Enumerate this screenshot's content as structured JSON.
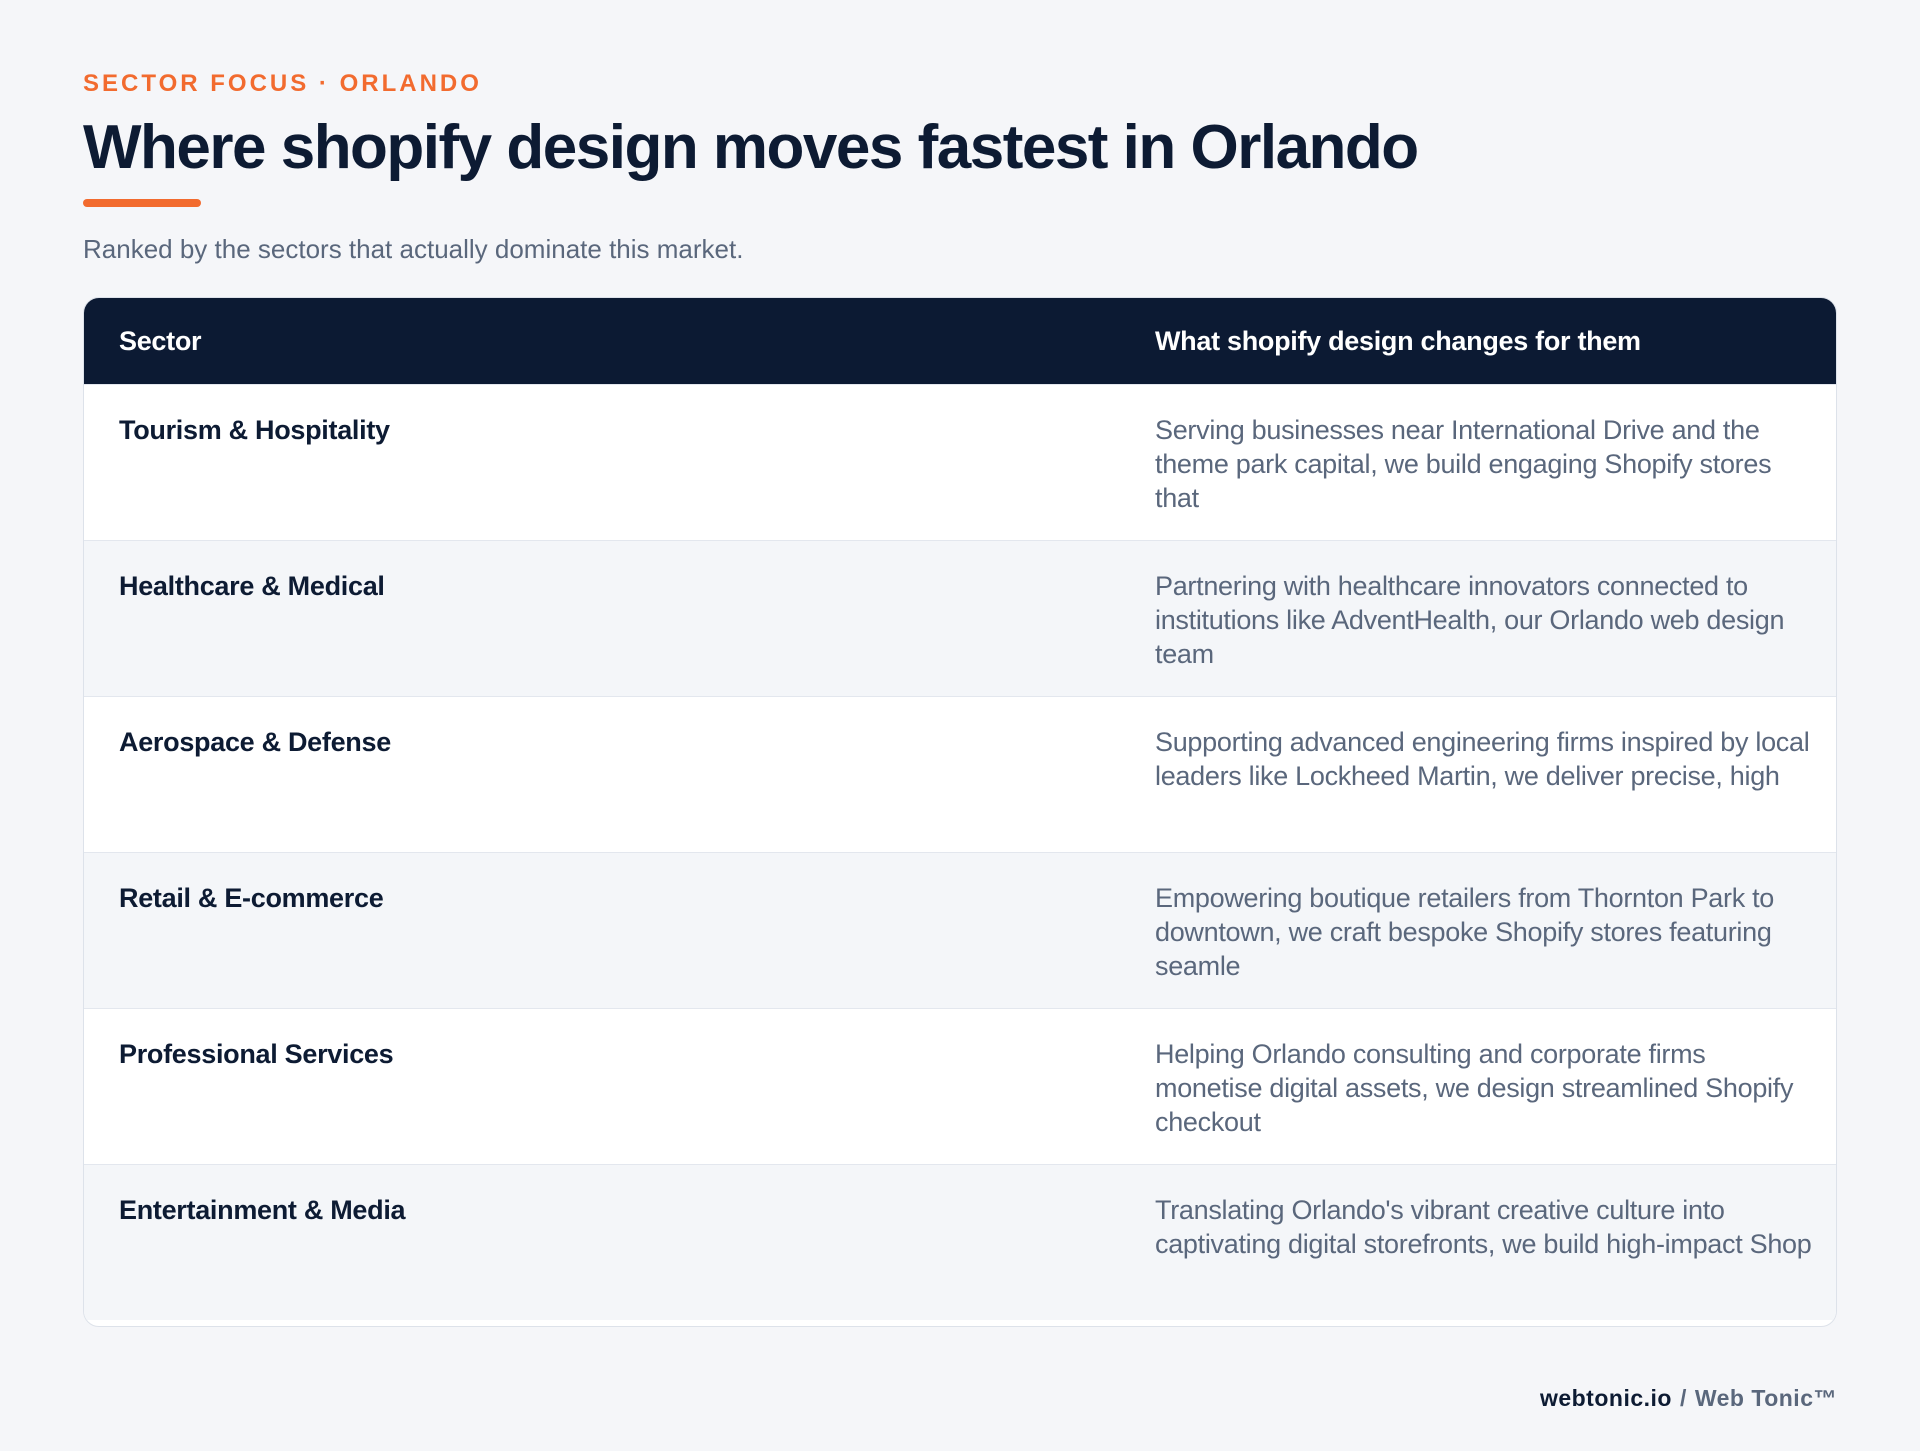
{
  "header": {
    "kicker": "SECTOR FOCUS · ORLANDO",
    "title": "Where shopify design moves fastest in Orlando",
    "subtitle": "Ranked by the sectors that actually dominate this market."
  },
  "table": {
    "columns": [
      "Sector",
      "What shopify design changes for them"
    ],
    "rows": [
      {
        "sector": "Tourism & Hospitality",
        "description": "Serving businesses near International Drive and the theme park capital, we build engaging Shopify stores that"
      },
      {
        "sector": "Healthcare & Medical",
        "description": "Partnering with healthcare innovators connected to institutions like AdventHealth, our Orlando web design team"
      },
      {
        "sector": "Aerospace & Defense",
        "description": "Supporting advanced engineering firms inspired by local leaders like Lockheed Martin, we deliver precise, high"
      },
      {
        "sector": "Retail & E-commerce",
        "description": "Empowering boutique retailers from Thornton Park to downtown, we craft bespoke Shopify stores featuring seamle"
      },
      {
        "sector": "Professional Services",
        "description": "Helping Orlando consulting and corporate firms monetise digital assets, we design streamlined Shopify checkout"
      },
      {
        "sector": "Entertainment & Media",
        "description": "Translating Orlando's vibrant creative culture into captivating digital storefronts, we build high-impact Shop"
      }
    ]
  },
  "footer": {
    "domain": "webtonic.io",
    "separator": "/",
    "brand": "Web Tonic™"
  },
  "colors": {
    "accent": "#f26b2f",
    "navy": "#0c1a33",
    "muted_text": "#5a677c",
    "background": "#f5f6f9"
  }
}
